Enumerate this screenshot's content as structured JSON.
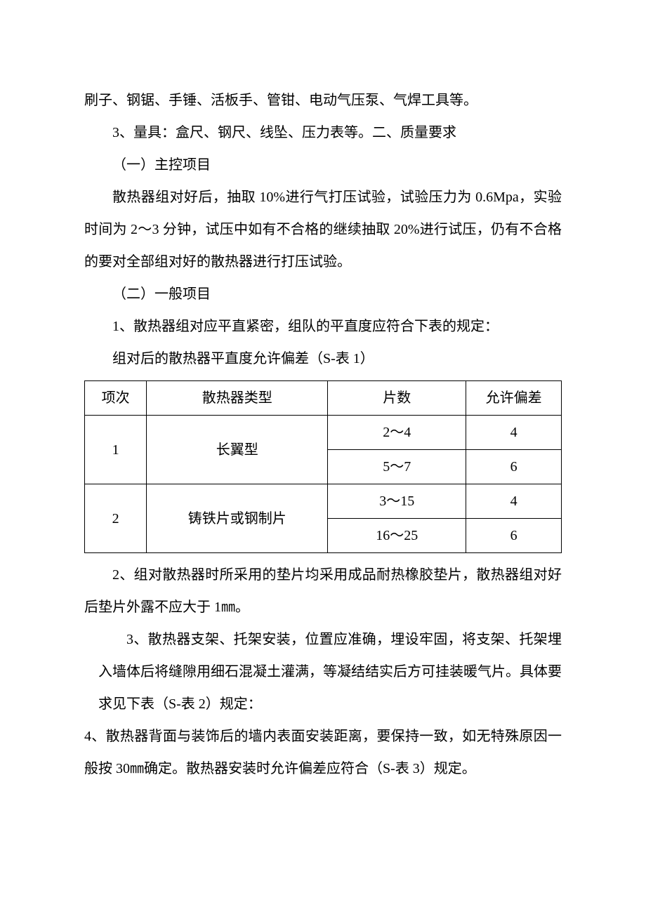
{
  "paragraphs": {
    "p1": "刷子、钢锯、手锤、活板手、管钳、电动气压泵、气焊工具等。",
    "p2": "3、量具：盒尺、钢尺、线坠、压力表等。二、质量要求",
    "p3": "（一）主控项目",
    "p4": "散热器组对好后，抽取 10%进行气打压试验，试验压力为 0.6Mpa，实验时间为 2～3 分钟，试压中如有不合格的继续抽取 20%进行试压，仍有不合格的要对全部组对好的散热器进行打压试验。",
    "p5": "（二）一般项目",
    "p6": "1、散热器组对应平直紧密，组队的平直度应符合下表的规定：",
    "p7": "组对后的散热器平直度允许偏差（S-表 1）",
    "p8": "2、组对散热器时所采用的垫片均采用成品耐热橡胶垫片，散热器组对好后垫片外露不应大于 1㎜。",
    "p9": "3、散热器支架、托架安装，位置应准确，埋设牢固，将支架、托架埋入墙体后将缝隙用细石混凝土灌满，等凝结结实后方可挂装暖气片。具体要求见下表（S-表 2）规定：",
    "p10": "4、散热器背面与装饰后的墙内表面安装距离，要保持一致，如无特殊原因一般按 30㎜确定。散热器安装时允许偏差应符合（S-表 3）规定。"
  },
  "table": {
    "header": {
      "c1": "项次",
      "c2": "散热器类型",
      "c3": "片数",
      "c4": "允许偏差"
    },
    "rows": [
      {
        "idx": "1",
        "type": "长翼型",
        "a_count": "2～4",
        "a_tol": "4",
        "b_count": "5～7",
        "b_tol": "6"
      },
      {
        "idx": "2",
        "type": "铸铁片或钢制片",
        "a_count": "3～15",
        "a_tol": "4",
        "b_count": "16～25",
        "b_tol": "6"
      }
    ]
  }
}
